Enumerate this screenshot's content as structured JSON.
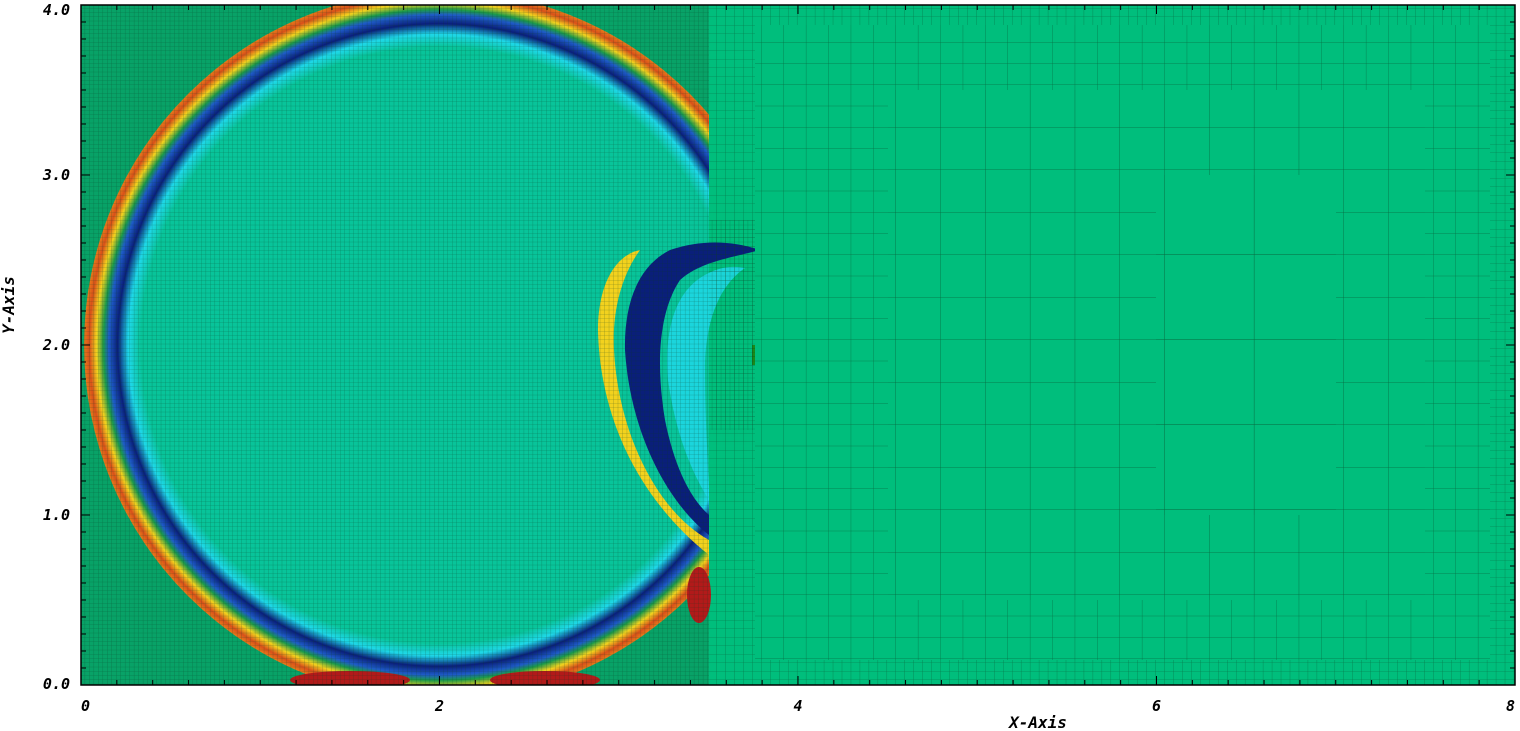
{
  "chart_data": {
    "type": "heatmap",
    "title": "",
    "xlabel": "X-Axis",
    "ylabel": "Y-Axis",
    "xlim": [
      0,
      8
    ],
    "ylim": [
      0,
      4
    ],
    "x_ticks": [
      0,
      2,
      4,
      6,
      8
    ],
    "y_ticks": [
      0.0,
      1.0,
      2.0,
      3.0,
      4.0
    ],
    "x_tick_labels": [
      "0",
      "2",
      "4",
      "6",
      "8"
    ],
    "y_tick_labels": [
      "0.0",
      "1.0",
      "2.0",
      "3.0",
      "4.0"
    ],
    "grid": false,
    "legend": "none",
    "field": {
      "description_colors": {
        "ambient": "#00be7c",
        "inner_region": "#08c49a",
        "low": "#0a1f7a",
        "mid_low": "#1ed8e8",
        "high": "#f2d21e",
        "peak": "#b21a1a",
        "mesh_line": "#0b3b1e"
      },
      "shock_center": [
        2.0,
        2.0
      ],
      "shock_radius": 1.98,
      "interface_x": 3.5
    }
  }
}
